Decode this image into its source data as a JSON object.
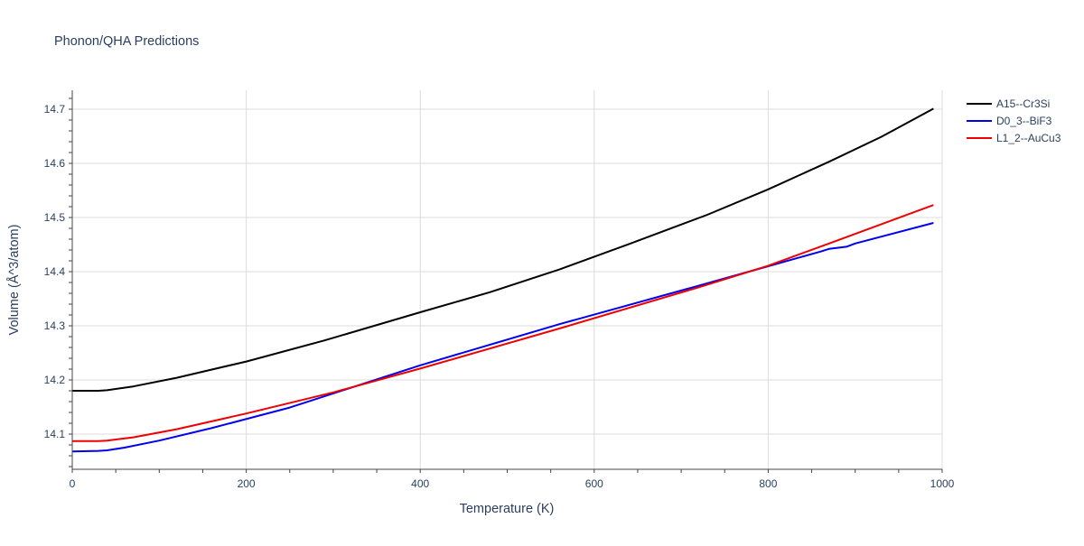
{
  "chart_data": {
    "type": "line",
    "title": "Phonon/QHA Predictions",
    "xlabel": "Temperature (K)",
    "ylabel": "Volume (Å^3/atom)",
    "xlim": [
      0,
      1000
    ],
    "ylim": [
      14.035,
      14.735
    ],
    "x_ticks": [
      0,
      200,
      400,
      600,
      800,
      1000
    ],
    "y_ticks": [
      14.1,
      14.2,
      14.3,
      14.4,
      14.5,
      14.6,
      14.7
    ],
    "grid": true,
    "legend_position": "top-right",
    "colors": {
      "grid": "#dcdcdc",
      "axis": "#444444",
      "text": "#2a3f5f"
    },
    "series": [
      {
        "name": "A15--Cr3Si",
        "color": "#000000",
        "points": [
          [
            0,
            14.18
          ],
          [
            30,
            14.18
          ],
          [
            40,
            14.181
          ],
          [
            70,
            14.188
          ],
          [
            120,
            14.204
          ],
          [
            200,
            14.234
          ],
          [
            290,
            14.273
          ],
          [
            400,
            14.325
          ],
          [
            480,
            14.362
          ],
          [
            560,
            14.404
          ],
          [
            640,
            14.451
          ],
          [
            730,
            14.505
          ],
          [
            800,
            14.552
          ],
          [
            870,
            14.603
          ],
          [
            930,
            14.649
          ],
          [
            990,
            14.701
          ]
        ]
      },
      {
        "name": "D0_3--BiF3",
        "color": "#0000ee",
        "points": [
          [
            0,
            14.068
          ],
          [
            30,
            14.069
          ],
          [
            40,
            14.07
          ],
          [
            60,
            14.075
          ],
          [
            100,
            14.088
          ],
          [
            160,
            14.111
          ],
          [
            250,
            14.149
          ],
          [
            400,
            14.227
          ],
          [
            560,
            14.303
          ],
          [
            720,
            14.374
          ],
          [
            800,
            14.41
          ],
          [
            860,
            14.437
          ],
          [
            870,
            14.442
          ],
          [
            890,
            14.446
          ],
          [
            900,
            14.452
          ],
          [
            990,
            14.49
          ]
        ]
      },
      {
        "name": "L1_2--AuCu3",
        "color": "#ee0000",
        "points": [
          [
            0,
            14.087
          ],
          [
            30,
            14.087
          ],
          [
            40,
            14.088
          ],
          [
            70,
            14.094
          ],
          [
            120,
            14.109
          ],
          [
            200,
            14.138
          ],
          [
            300,
            14.177
          ],
          [
            400,
            14.221
          ],
          [
            560,
            14.295
          ],
          [
            720,
            14.371
          ],
          [
            800,
            14.411
          ],
          [
            870,
            14.452
          ],
          [
            990,
            14.523
          ]
        ]
      }
    ]
  }
}
